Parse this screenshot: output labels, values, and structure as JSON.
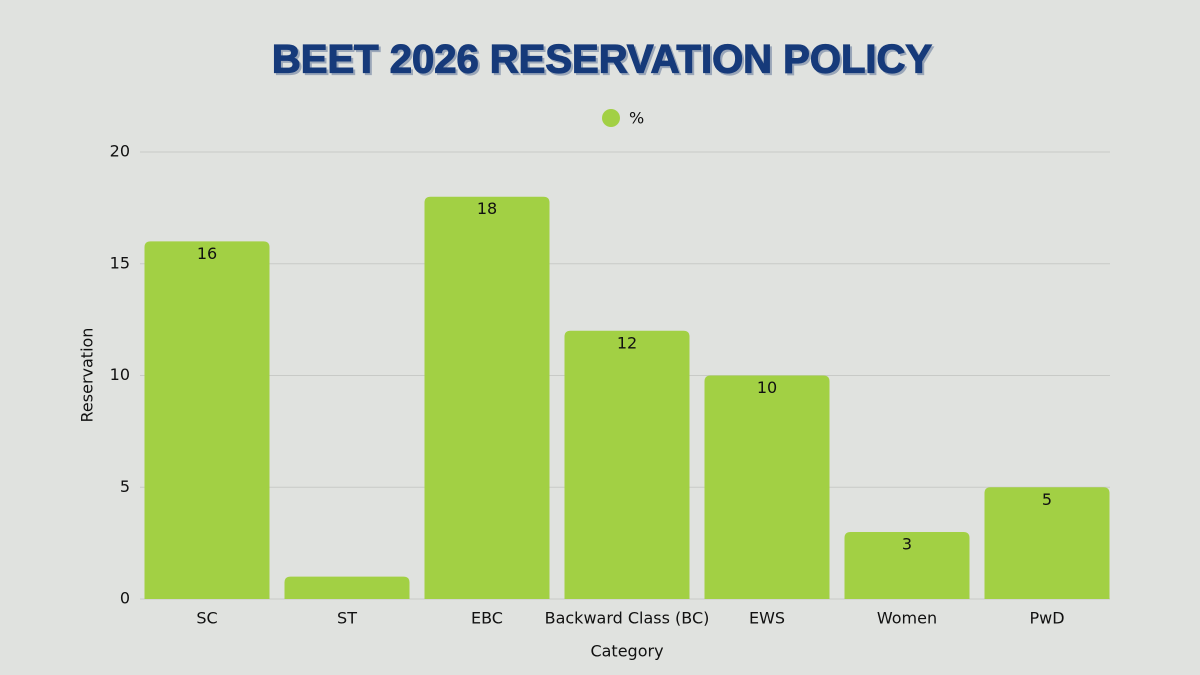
{
  "chart_data": {
    "type": "bar",
    "title": "BEET 2026 RESERVATION POLICY",
    "categories": [
      "SC",
      "ST",
      "EBC",
      "Backward Class (BC)",
      "EWS",
      "Women",
      "PwD"
    ],
    "series": [
      {
        "name": "%",
        "color": "#a2d044",
        "values": [
          16,
          1,
          18,
          12,
          10,
          3,
          5
        ]
      }
    ],
    "x_label": "Category",
    "y_label": "Reservation",
    "ylim": [
      0,
      20
    ],
    "yticks": [
      0,
      5,
      10,
      15,
      20
    ],
    "grid": true,
    "legend": "top"
  }
}
